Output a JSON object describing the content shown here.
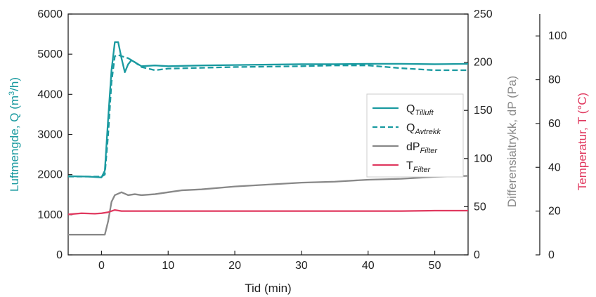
{
  "chart_data": {
    "type": "line",
    "xlabel": "Tid (min)",
    "xlim": [
      -5,
      55
    ],
    "x_ticks": [
      0,
      10,
      20,
      30,
      40,
      50
    ],
    "axes": {
      "left": {
        "label_prefix": "Luftmengde, Q (m",
        "label_sup": "3",
        "label_suffix": "/h)",
        "color": "#1a9aa0",
        "lim": [
          0,
          6000
        ],
        "ticks": [
          0,
          1000,
          2000,
          3000,
          4000,
          5000,
          6000
        ]
      },
      "right1": {
        "label": "Differensialtrykk, dP (Pa)",
        "color": "#888888",
        "lim": [
          0,
          250
        ],
        "ticks": [
          0,
          50,
          100,
          150,
          200,
          250
        ]
      },
      "right2": {
        "label": "Temperatur, T (°C)",
        "color": "#e0395f",
        "lim": [
          0,
          110
        ],
        "ticks": [
          0,
          20,
          40,
          60,
          80,
          100
        ]
      }
    },
    "legend_position": "center-right",
    "series": [
      {
        "name": "Q",
        "sub": "Tilluft",
        "axis": "left",
        "color": "#1a9aa0",
        "dash": "solid",
        "x": [
          -5,
          -2,
          0,
          0.5,
          1,
          1.5,
          2,
          2.5,
          3,
          3.5,
          4,
          4.5,
          5,
          6,
          8,
          10,
          15,
          20,
          25,
          30,
          35,
          40,
          45,
          50,
          55
        ],
        "y": [
          1960,
          1950,
          1930,
          2100,
          3400,
          4600,
          5300,
          5300,
          4900,
          4550,
          4750,
          4850,
          4800,
          4700,
          4720,
          4700,
          4720,
          4730,
          4740,
          4750,
          4750,
          4760,
          4760,
          4750,
          4760
        ]
      },
      {
        "name": "Q",
        "sub": "Avtrekk",
        "axis": "left",
        "color": "#1a9aa0",
        "dash": "dashed",
        "x": [
          -5,
          -2,
          0,
          0.5,
          1,
          1.5,
          2,
          2.5,
          3,
          4,
          5,
          6,
          8,
          10,
          15,
          20,
          25,
          30,
          35,
          40,
          45,
          50,
          55
        ],
        "y": [
          1950,
          1950,
          1950,
          2000,
          3000,
          4300,
          4950,
          4980,
          4950,
          4900,
          4800,
          4680,
          4600,
          4640,
          4660,
          4680,
          4690,
          4700,
          4720,
          4720,
          4650,
          4600,
          4600
        ]
      },
      {
        "name": "dP",
        "sub": "Filter",
        "axis": "right1",
        "color": "#888888",
        "dash": "solid",
        "x": [
          -5,
          -2,
          0,
          0.5,
          1,
          1.5,
          2,
          3,
          4,
          5,
          6,
          8,
          10,
          12,
          15,
          20,
          25,
          30,
          35,
          40,
          45,
          50,
          55
        ],
        "y": [
          21,
          21,
          21,
          21,
          35,
          55,
          62,
          65,
          62,
          63,
          62,
          63,
          65,
          67,
          68,
          71,
          73,
          75,
          76,
          78,
          79,
          81,
          82
        ]
      },
      {
        "name": "T",
        "sub": "Filter",
        "axis": "right2",
        "color": "#e0395f",
        "dash": "solid",
        "x": [
          -5,
          -3,
          -1,
          0,
          1,
          2,
          3,
          5,
          10,
          15,
          20,
          25,
          30,
          35,
          40,
          45,
          50,
          55
        ],
        "y": [
          18.5,
          19.0,
          18.8,
          19.0,
          19.5,
          20.5,
          20.0,
          20.0,
          20.0,
          20.0,
          20.0,
          20.0,
          20.0,
          20.0,
          20.0,
          20.0,
          20.2,
          20.2
        ]
      }
    ]
  }
}
